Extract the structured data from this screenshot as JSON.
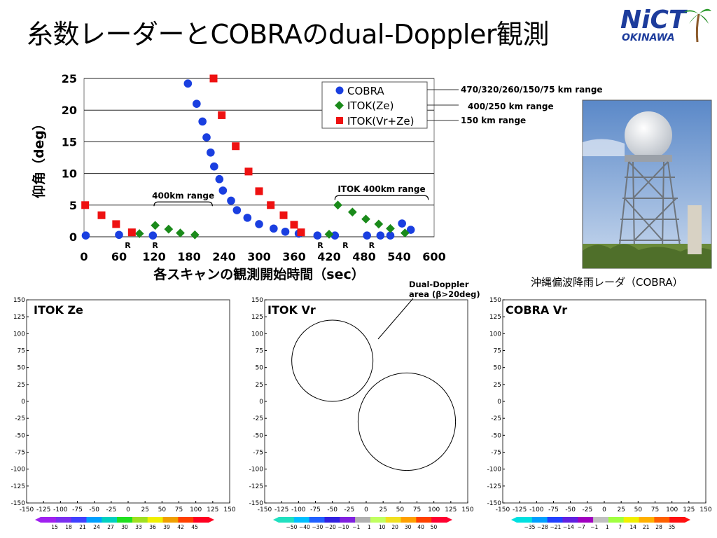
{
  "title": "糸数レーダーとCOBRAのdual-Doppler観測",
  "logo": {
    "main": "NiCT",
    "sub": "OKINAWA"
  },
  "photo_caption": "沖縄偏波降雨レーダ（COBRA）",
  "colors": {
    "cobra": "#1a3fe0",
    "itok_ze": "#1a8a1a",
    "itok_vr": "#ee1111"
  },
  "chart_data": [
    {
      "type": "scatter",
      "title": "",
      "xlabel": "各スキャンの観測開始時間（sec）",
      "ylabel": "仰角（deg）",
      "xlim": [
        0,
        600
      ],
      "ylim": [
        0,
        25
      ],
      "x_ticks": [
        0,
        60,
        120,
        180,
        240,
        300,
        360,
        420,
        480,
        540,
        600
      ],
      "y_ticks": [
        0,
        5,
        10,
        15,
        20,
        25
      ],
      "grid": "horizontal",
      "legend_position": "top-right",
      "series": [
        {
          "name": "COBRA",
          "marker": "circle",
          "x": [
            3,
            118,
            60,
            178,
            193,
            203,
            210,
            217,
            223,
            232,
            238,
            252,
            262,
            280,
            300,
            325,
            345,
            368,
            400,
            430,
            485,
            508,
            525,
            545,
            560
          ],
          "y": [
            0.2,
            0.2,
            0.3,
            24.2,
            21.0,
            18.2,
            15.7,
            13.3,
            11.1,
            9.1,
            7.3,
            5.7,
            4.2,
            3.0,
            2.0,
            1.3,
            0.8,
            0.5,
            0.2,
            0.2,
            0.2,
            0.2,
            0.2,
            2.1,
            1.1
          ]
        },
        {
          "name": "ITOK(Ze)",
          "marker": "diamond",
          "x": [
            95,
            122,
            145,
            165,
            190,
            420,
            435,
            460,
            483,
            505,
            525,
            550
          ],
          "y": [
            0.5,
            1.8,
            1.2,
            0.6,
            0.3,
            0.4,
            5.0,
            3.9,
            2.8,
            2.0,
            1.3,
            0.6
          ],
          "annotations": [
            {
              "text": "400km range",
              "x_from": 120,
              "x_to": 220,
              "y": 5.5
            },
            {
              "text": "ITOK 400km range",
              "x_from": 430,
              "x_to": 590,
              "y": 6.5
            }
          ]
        },
        {
          "name": "ITOK(Vr+Ze)",
          "marker": "square",
          "x": [
            2,
            30,
            55,
            82,
            222,
            236,
            260,
            282,
            300,
            320,
            342,
            360,
            372
          ],
          "y": [
            5.0,
            3.4,
            2.0,
            0.7,
            25.0,
            19.2,
            14.3,
            10.3,
            7.2,
            5.0,
            3.4,
            1.9,
            0.7
          ]
        }
      ],
      "r_marks": [
        {
          "x": 75,
          "label": "R"
        },
        {
          "x": 122,
          "label": "R"
        },
        {
          "x": 405,
          "label": "R"
        },
        {
          "x": 448,
          "label": "R"
        },
        {
          "x": 493,
          "label": "R"
        }
      ],
      "range_notes": [
        "470/320/260/150/75 km range",
        "400/250 km range",
        "150 km range"
      ]
    },
    {
      "type": "heatmap",
      "title": "ITOK Ze",
      "xlim": [
        -150,
        150
      ],
      "ylim": [
        -150,
        150
      ],
      "ticks": [
        -150,
        -125,
        -100,
        -75,
        -50,
        -25,
        0,
        25,
        50,
        75,
        100,
        125,
        150
      ],
      "colorbar": [
        "15",
        "18",
        "21",
        "24",
        "27",
        "30",
        "33",
        "36",
        "39",
        "42",
        "45"
      ]
    },
    {
      "type": "heatmap",
      "title": "ITOK Vr",
      "xlim": [
        -150,
        150
      ],
      "ylim": [
        -150,
        150
      ],
      "ticks": [
        -150,
        -125,
        -100,
        -75,
        -50,
        -25,
        0,
        25,
        50,
        75,
        100,
        125,
        150
      ],
      "colorbar": [
        "−50",
        "−40",
        "−30",
        "−20",
        "−10",
        "−1",
        "1",
        "10",
        "20",
        "30",
        "40",
        "50"
      ],
      "annotation": "Dual-Doppler area (β>20deg)"
    },
    {
      "type": "heatmap",
      "title": "COBRA Vr",
      "xlim": [
        -150,
        150
      ],
      "ylim": [
        -150,
        150
      ],
      "ticks": [
        -150,
        -125,
        -100,
        -75,
        -50,
        -25,
        0,
        25,
        50,
        75,
        100,
        125,
        150
      ],
      "colorbar": [
        "−35",
        "−28",
        "−21",
        "−14",
        "−7",
        "−1",
        "1",
        "7",
        "14",
        "21",
        "28",
        "35"
      ]
    }
  ]
}
